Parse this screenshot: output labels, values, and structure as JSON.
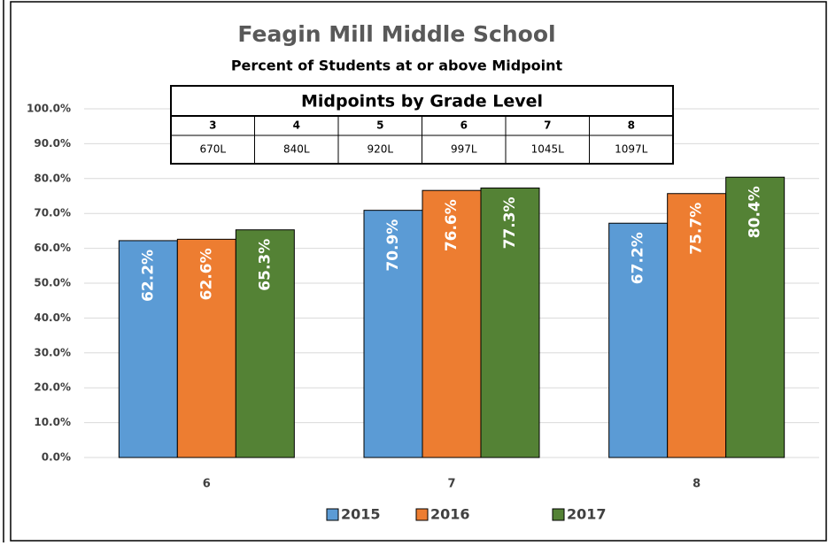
{
  "chart_data": {
    "type": "bar",
    "title": "Feagin Mill Middle School",
    "subtitle": "Percent of Students at or above Midpoint",
    "categories": [
      "6",
      "7",
      "8"
    ],
    "series": [
      {
        "name": "2015",
        "color": "#5b9bd5",
        "values": [
          62.2,
          70.9,
          67.2
        ],
        "value_labels": [
          "62.2%",
          "70.9%",
          "67.2%"
        ]
      },
      {
        "name": "2016",
        "color": "#ed7d31",
        "values": [
          62.6,
          76.6,
          75.7
        ],
        "value_labels": [
          "62.6%",
          "76.6%",
          "75.7%"
        ]
      },
      {
        "name": "2017",
        "color": "#548235",
        "values": [
          65.3,
          77.3,
          80.4
        ],
        "value_labels": [
          "65.3%",
          "77.3%",
          "80.4%"
        ]
      }
    ],
    "ylim": [
      0,
      100
    ],
    "yticks": [
      {
        "value": 0,
        "label": "0.0%"
      },
      {
        "value": 10,
        "label": "10.0%"
      },
      {
        "value": 20,
        "label": "20.0%"
      },
      {
        "value": 30,
        "label": "30.0%"
      },
      {
        "value": 40,
        "label": "40.0%"
      },
      {
        "value": 50,
        "label": "50.0%"
      },
      {
        "value": 60,
        "label": "60.0%"
      },
      {
        "value": 70,
        "label": "70.0%"
      },
      {
        "value": 80,
        "label": "80.0%"
      },
      {
        "value": 90,
        "label": "90.0%"
      },
      {
        "value": 100,
        "label": "100.0%"
      }
    ],
    "grid": true,
    "legend": "bottom",
    "table": {
      "title": "Midpoints by Grade Level",
      "header": [
        "3",
        "4",
        "5",
        "6",
        "7",
        "8"
      ],
      "row": [
        "670L",
        "840L",
        "920L",
        "997L",
        "1045L",
        "1097L"
      ]
    }
  }
}
